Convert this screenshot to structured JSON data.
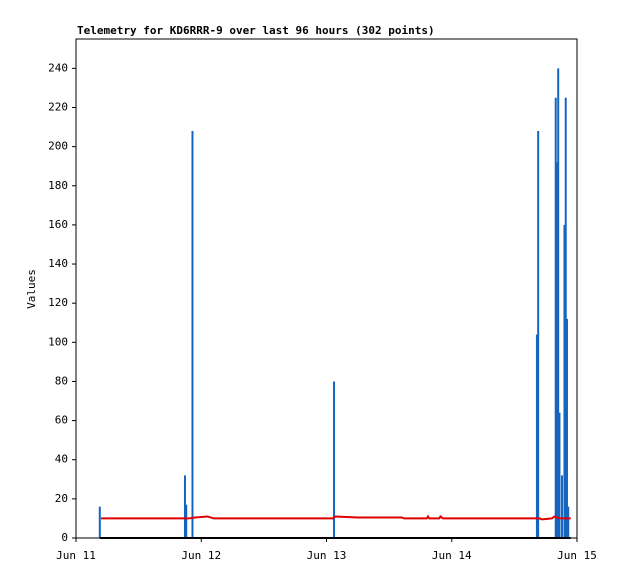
{
  "chart_data": {
    "type": "line",
    "title": "Telemetry for KD6RRR-9 over last 96 hours (302 points)",
    "y_label": "Values",
    "xlim": [
      11,
      15
    ],
    "xticks": [
      {
        "value": 11,
        "label": "Jun 11"
      },
      {
        "value": 12,
        "label": "Jun 12"
      },
      {
        "value": 13,
        "label": "Jun 13"
      },
      {
        "value": 14,
        "label": "Jun 14"
      },
      {
        "value": 15,
        "label": "Jun 15"
      }
    ],
    "ylim": [
      0,
      255
    ],
    "yticks": [
      0,
      20,
      40,
      60,
      80,
      100,
      120,
      140,
      160,
      180,
      200,
      220,
      240
    ],
    "grid": false,
    "series": [
      {
        "color": "#1565c0",
        "style": "impulses",
        "x": [
          11.19,
          11.87,
          11.88,
          11.93,
          13.06,
          14.68,
          14.69,
          14.83,
          14.84,
          14.85,
          14.86,
          14.88,
          14.9,
          14.91,
          14.92,
          14.93
        ],
        "values": [
          16,
          32,
          17,
          208,
          80,
          104,
          208,
          225,
          192,
          240,
          64,
          32,
          160,
          225,
          112,
          16
        ]
      },
      {
        "color": "#e00000",
        "style": "line",
        "x": [
          11.2,
          11.9,
          11.95,
          12.05,
          12.1,
          13.05,
          13.07,
          13.25,
          13.6,
          13.62,
          13.8,
          13.81,
          13.82,
          13.9,
          13.91,
          13.93,
          14.66,
          14.7,
          14.72,
          14.8,
          14.82,
          14.86,
          14.95
        ],
        "values": [
          10,
          10,
          10.5,
          11,
          10,
          10,
          11,
          10.5,
          10.5,
          10,
          10,
          11,
          10,
          10,
          11,
          10,
          10,
          10,
          9.5,
          10,
          11,
          10,
          10
        ]
      },
      {
        "color": "#000000",
        "style": "line",
        "x": [
          11.19,
          14.95
        ],
        "values": [
          0,
          0
        ]
      }
    ]
  }
}
